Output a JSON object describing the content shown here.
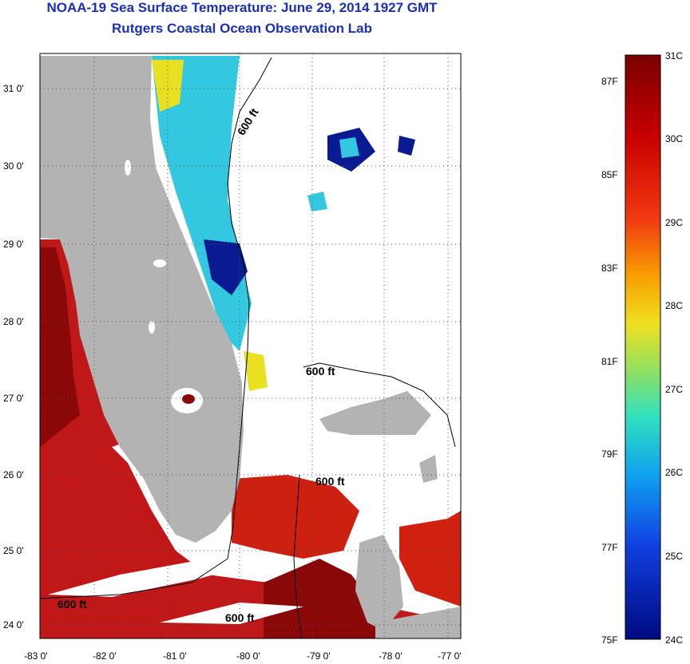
{
  "title": {
    "line1": "NOAA-19 Sea Surface Temperature:  June 29, 2014 1927 GMT",
    "line2": "Rutgers Coastal Ocean Observation Lab"
  },
  "map": {
    "lat_labels": [
      "31 0'",
      "30 0'",
      "29 0'",
      "28 0'",
      "27 0'",
      "26 0'",
      "25 0'",
      "24 0'"
    ],
    "lon_labels": [
      "-83 0'",
      "-82 0'",
      "-81 0'",
      "-80 0'",
      "-79 0'",
      "-78 0'",
      "-77 0'"
    ],
    "contour_label": "600 ft",
    "colors": {
      "land": "#b3b3b3",
      "warm": "#c01818",
      "hot": "#8a0808",
      "cool": "#0a1a90",
      "mid": "#33c8e0",
      "yellow": "#e8e020"
    }
  },
  "colorbar": {
    "celsius_labels": [
      "31C",
      "30C",
      "29C",
      "28C",
      "27C",
      "26C",
      "25C",
      "24C"
    ],
    "fahrenheit_labels": [
      "87F",
      "85F",
      "83F",
      "81F",
      "79F",
      "77F",
      "75F"
    ]
  }
}
